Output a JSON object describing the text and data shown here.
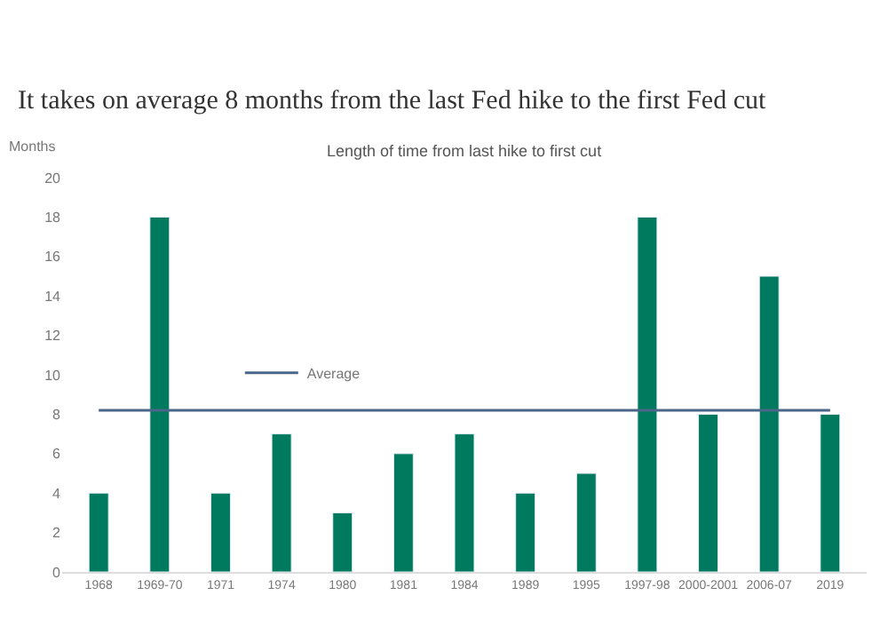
{
  "chart_data": {
    "type": "bar",
    "title": "It takes on average 8 months from the last Fed hike to the first Fed cut",
    "subtitle": "Length of time from last hike to first cut",
    "ylabel": "Months",
    "categories": [
      "1968",
      "1969-70",
      "1971",
      "1974",
      "1980",
      "1981",
      "1984",
      "1989",
      "1995",
      "1997-98",
      "2000-2001",
      "2006-07",
      "2019"
    ],
    "series": [
      {
        "values": [
          4,
          18,
          4,
          7,
          3,
          6,
          7,
          4,
          5,
          18,
          8,
          15,
          8
        ],
        "color": "#007a5e"
      },
      {
        "name": "Average",
        "type": "line",
        "color": "#4a6688",
        "values": [
          8.2,
          8.2,
          8.2,
          8.2,
          8.2,
          8.2,
          8.2,
          8.2,
          8.2,
          8.2,
          8.2,
          8.2,
          8.2
        ]
      }
    ],
    "ylim": [
      0,
      20
    ],
    "yticks": [
      0,
      2,
      4,
      6,
      8,
      10,
      12,
      14,
      16,
      18,
      20
    ],
    "legend": "top",
    "marker": "none"
  }
}
